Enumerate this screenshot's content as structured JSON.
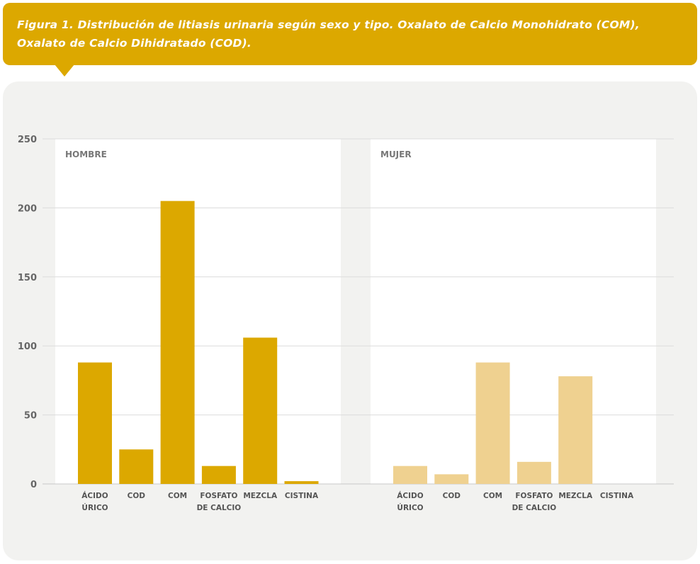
{
  "caption": {
    "text": "Figura 1. Distribución de litiasis urinaria según sexo y tipo. Oxalato de Calcio Monohidrato (COM), Oxalato de Calcio Dihidratado (COD)."
  },
  "colors": {
    "caption_bg": "#dca800",
    "hombre_bar": "#dca800",
    "mujer_bar": "#efd190",
    "panel_bg": "#f2f2f0",
    "facet_bg": "#ffffff",
    "grid": "#dcdcdc"
  },
  "chart_data": {
    "type": "bar",
    "facets": [
      "HOMBRE",
      "MUJER"
    ],
    "categories": [
      "ÁCIDO ÚRICO",
      "COD",
      "COM",
      "FOSFATO DE CALCIO",
      "MEZCLA",
      "CISTINA"
    ],
    "category_lines": [
      [
        "ÁCIDO",
        "ÚRICO"
      ],
      [
        "COD"
      ],
      [
        "COM"
      ],
      [
        "FOSFATO",
        "DE CALCIO"
      ],
      [
        "MEZCLA"
      ],
      [
        "CISTINA"
      ]
    ],
    "series": [
      {
        "name": "HOMBRE",
        "values": [
          88,
          25,
          205,
          13,
          106,
          2
        ]
      },
      {
        "name": "MUJER",
        "values": [
          13,
          7,
          88,
          16,
          78,
          0
        ]
      }
    ],
    "yticks": [
      0,
      50,
      100,
      150,
      200,
      250
    ],
    "ylim": [
      0,
      250
    ],
    "grid": true,
    "legend": "none"
  }
}
